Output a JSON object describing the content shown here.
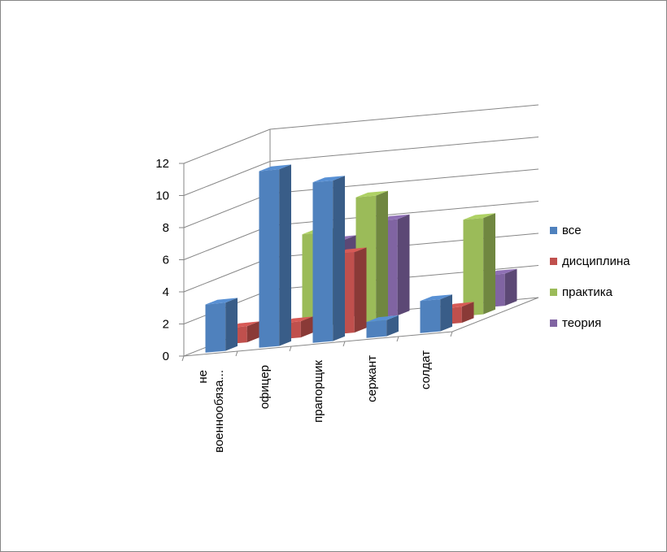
{
  "chart_data": {
    "type": "bar",
    "subtype": "3d-clustered-column",
    "categories": [
      "не военнообяза...",
      "офицер",
      "прапорщик",
      "сержант",
      "солдат"
    ],
    "categories_lines": [
      [
        "не",
        "военнообяза..."
      ],
      [
        "офицер"
      ],
      [
        "прапорщик"
      ],
      [
        "сержант"
      ],
      [
        "солдат"
      ]
    ],
    "series": [
      {
        "name": "все",
        "color": "#4F81BD",
        "values": [
          3,
          11,
          10,
          1,
          2
        ]
      },
      {
        "name": "дисциплина",
        "color": "#C0504D",
        "values": [
          1,
          1,
          5,
          0,
          1
        ]
      },
      {
        "name": "практика",
        "color": "#9BBB59",
        "values": [
          0,
          6,
          8,
          0,
          6
        ]
      },
      {
        "name": "теория",
        "color": "#8064A2",
        "values": [
          0,
          5,
          6,
          0,
          2
        ]
      }
    ],
    "y_ticks": [
      "0",
      "2",
      "4",
      "6",
      "8",
      "10",
      "12"
    ],
    "ylim": [
      0,
      12
    ],
    "grid": true,
    "legend_position": "right",
    "title": "",
    "xlabel": "",
    "ylabel": ""
  }
}
